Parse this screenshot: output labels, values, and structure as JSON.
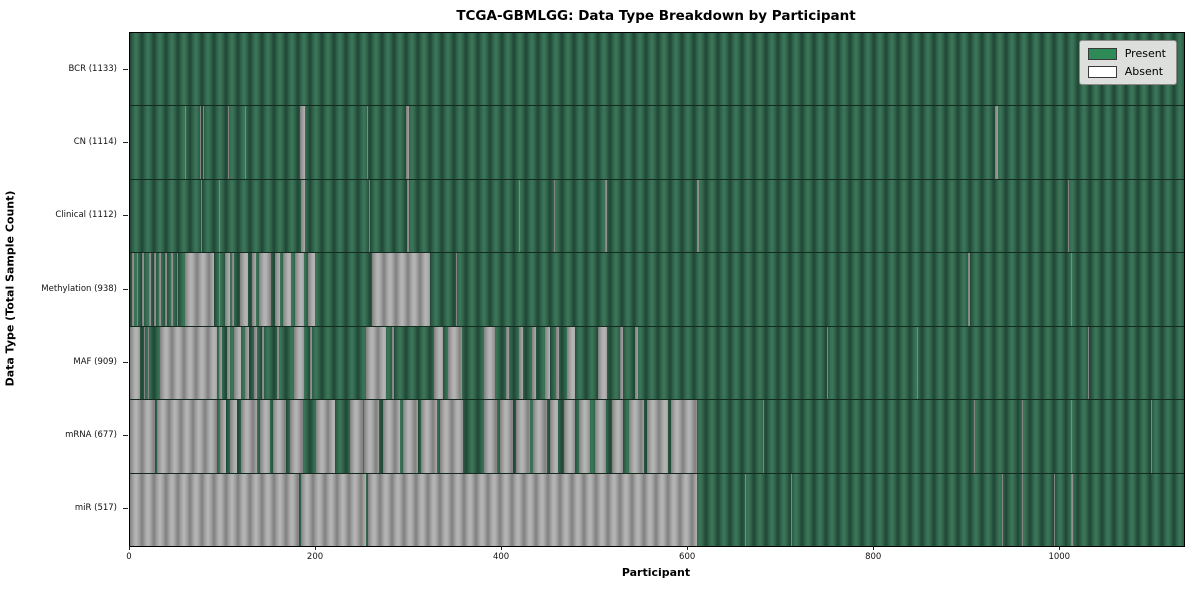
{
  "chart_data": {
    "type": "heatmap",
    "title": "TCGA-GBMLGG: Data Type Breakdown by Participant",
    "xlabel": "Participant",
    "ylabel": "Data Type (Total Sample Count)",
    "x_ticks": [
      0,
      200,
      400,
      600,
      800,
      1000
    ],
    "x_domain_max": 1133,
    "grid": false,
    "legend_position": "upper right",
    "legend": [
      {
        "label": "Present",
        "color": "#2e8b57"
      },
      {
        "label": "Absent",
        "color": "#ffffff"
      }
    ],
    "colors": {
      "present_fill": "#2e8b57",
      "absent_fill": "#ffffff",
      "bar_edge": "#1a1a1a",
      "rendered_present_stripe_dark": "#1e4534",
      "rendered_present_stripe_light": "#3a7355",
      "rendered_absent_stripe_dark": "#7f7f7f",
      "rendered_absent_stripe_light": "#b3b3b3"
    },
    "rows": [
      {
        "name": "BCR",
        "label": "BCR (1133)",
        "present_count": 1133,
        "absent_ranges": []
      },
      {
        "name": "CN",
        "label": "CN (1114)",
        "present_count": 1114,
        "absent_ranges": [
          [
            59,
            60
          ],
          [
            75,
            76
          ],
          [
            79,
            80
          ],
          [
            105,
            106
          ],
          [
            124,
            125
          ],
          [
            183,
            188
          ],
          [
            255,
            256
          ],
          [
            297,
            300
          ],
          [
            509,
            510
          ],
          [
            930,
            933
          ]
        ]
      },
      {
        "name": "Clinical",
        "label": "Clinical (1112)",
        "present_count": 1112,
        "absent_ranges": [
          [
            76,
            77
          ],
          [
            96,
            97
          ],
          [
            184,
            188
          ],
          [
            257,
            258
          ],
          [
            298,
            300
          ],
          [
            418,
            419
          ],
          [
            456,
            457
          ],
          [
            511,
            513
          ],
          [
            610,
            612
          ],
          [
            1008,
            1009
          ]
        ]
      },
      {
        "name": "Methylation",
        "label": "Methylation (938)",
        "present_count": 938,
        "absent_ranges": [
          [
            2,
            4
          ],
          [
            7,
            9
          ],
          [
            13,
            15
          ],
          [
            20,
            23
          ],
          [
            26,
            28
          ],
          [
            31,
            33
          ],
          [
            38,
            40
          ],
          [
            44,
            46
          ],
          [
            50,
            52
          ],
          [
            59,
            90
          ],
          [
            96,
            97
          ],
          [
            102,
            107
          ],
          [
            110,
            112
          ],
          [
            118,
            127
          ],
          [
            131,
            135
          ],
          [
            139,
            152
          ],
          [
            156,
            161
          ],
          [
            165,
            173
          ],
          [
            177,
            187
          ],
          [
            191,
            199
          ],
          [
            260,
            323
          ],
          [
            350,
            351
          ],
          [
            901,
            903
          ],
          [
            1011,
            1013
          ]
        ]
      },
      {
        "name": "MAF",
        "label": "MAF (909)",
        "present_count": 909,
        "absent_ranges": [
          [
            0,
            11
          ],
          [
            15,
            16
          ],
          [
            19,
            20
          ],
          [
            32,
            94
          ],
          [
            96,
            99
          ],
          [
            104,
            108
          ],
          [
            112,
            119
          ],
          [
            124,
            128
          ],
          [
            133,
            137
          ],
          [
            142,
            144
          ],
          [
            150,
            151
          ],
          [
            158,
            160
          ],
          [
            176,
            187
          ],
          [
            194,
            196
          ],
          [
            254,
            275
          ],
          [
            282,
            284
          ],
          [
            327,
            337
          ],
          [
            342,
            357
          ],
          [
            380,
            392
          ],
          [
            404,
            407
          ],
          [
            418,
            422
          ],
          [
            432,
            436
          ],
          [
            446,
            452
          ],
          [
            458,
            461
          ],
          [
            470,
            478
          ],
          [
            503,
            513
          ],
          [
            527,
            530
          ],
          [
            543,
            546
          ],
          [
            749,
            750
          ],
          [
            846,
            847
          ],
          [
            1030,
            1031
          ]
        ]
      },
      {
        "name": "mRNA",
        "label": "mRNA (677)",
        "present_count": 677,
        "absent_ranges": [
          [
            0,
            27
          ],
          [
            29,
            93
          ],
          [
            97,
            103
          ],
          [
            107,
            115
          ],
          [
            119,
            136
          ],
          [
            140,
            150
          ],
          [
            154,
            168
          ],
          [
            172,
            186
          ],
          [
            200,
            220
          ],
          [
            236,
            250
          ],
          [
            252,
            268
          ],
          [
            272,
            290
          ],
          [
            293,
            310
          ],
          [
            313,
            330
          ],
          [
            333,
            358
          ],
          [
            380,
            395
          ],
          [
            398,
            412
          ],
          [
            415,
            430
          ],
          [
            433,
            448
          ],
          [
            452,
            460
          ],
          [
            466,
            478
          ],
          [
            483,
            495
          ],
          [
            500,
            512
          ],
          [
            518,
            530
          ],
          [
            536,
            553
          ],
          [
            556,
            578
          ],
          [
            582,
            610
          ],
          [
            623,
            624
          ],
          [
            680,
            681
          ],
          [
            907,
            908
          ],
          [
            959,
            960
          ],
          [
            1012,
            1013
          ],
          [
            1098,
            1099
          ]
        ]
      },
      {
        "name": "miR",
        "label": "miR (517)",
        "present_count": 517,
        "absent_ranges": [
          [
            0,
            182
          ],
          [
            184,
            254
          ],
          [
            256,
            610
          ],
          [
            661,
            662
          ],
          [
            711,
            712
          ],
          [
            937,
            938
          ],
          [
            959,
            960
          ],
          [
            993,
            994
          ],
          [
            1012,
            1014
          ]
        ]
      }
    ]
  }
}
